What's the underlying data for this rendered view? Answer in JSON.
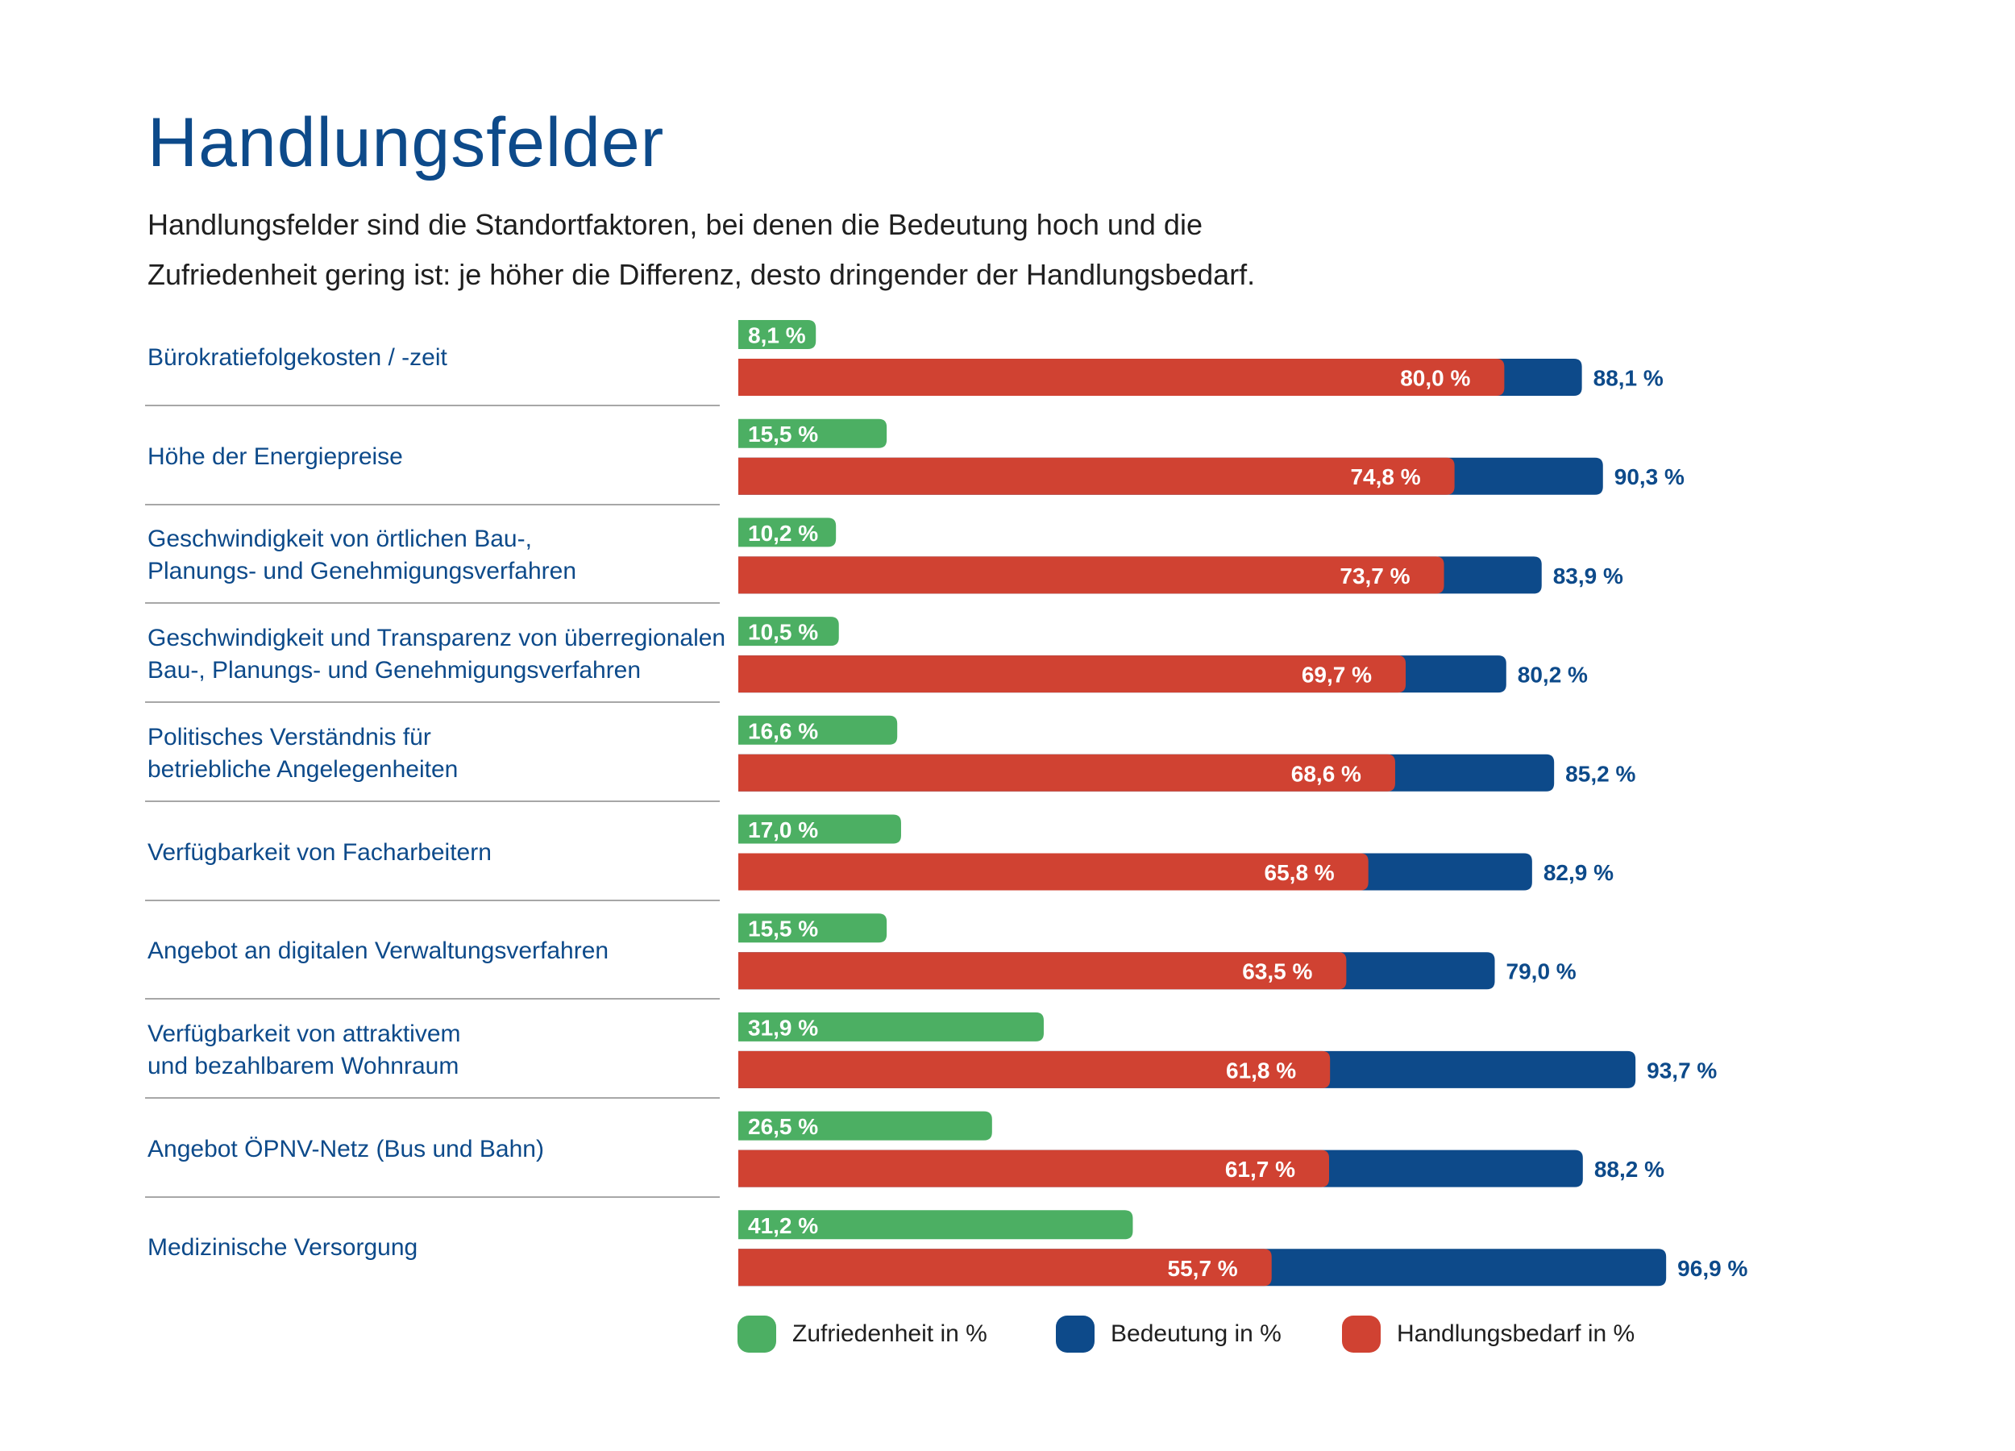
{
  "header": {
    "title": "Handlungsfelder",
    "subtitle_line1": "Handlungsfelder sind die Standortfaktoren, bei denen die Bedeutung hoch und die",
    "subtitle_line2": "Zufriedenheit gering ist: je höher die Differenz, desto dringender der Handlungsbedarf."
  },
  "colors": {
    "zufriedenheit": "#4caf63",
    "bedeutung": "#0d4a8a",
    "handlungsbedarf": "#d04232",
    "label_text": "#0d4a8a"
  },
  "legend": {
    "items": [
      {
        "label": "Zufriedenheit in %",
        "color": "#4caf63"
      },
      {
        "label": "Bedeutung in %",
        "color": "#0d4a8a"
      },
      {
        "label": "Handlungsbedarf in %",
        "color": "#d04232"
      }
    ]
  },
  "chart_data": {
    "type": "bar",
    "orientation": "horizontal",
    "title": "Handlungsfelder",
    "xlim": [
      0,
      100
    ],
    "categories": [
      [
        "Bürokratiefolgekosten / -zeit"
      ],
      [
        "Höhe der Energiepreise"
      ],
      [
        "Geschwindigkeit von örtlichen Bau-,",
        "Planungs- und Genehmigungsverfahren"
      ],
      [
        "Geschwindigkeit und Transparenz von überregionalen",
        "Bau-, Planungs- und Genehmigungsverfahren"
      ],
      [
        "Politisches Verständnis für",
        "betriebliche Angelegenheiten"
      ],
      [
        "Verfügbarkeit von Facharbeitern"
      ],
      [
        "Angebot an digitalen Verwaltungsverfahren"
      ],
      [
        "Verfügbarkeit von attraktivem",
        "und bezahlbarem Wohnraum"
      ],
      [
        "Angebot ÖPNV-Netz (Bus und Bahn)"
      ],
      [
        "Medizinische Versorgung"
      ]
    ],
    "series": [
      {
        "name": "Zufriedenheit in %",
        "values": [
          8.1,
          15.5,
          10.2,
          10.5,
          16.6,
          17.0,
          15.5,
          31.9,
          26.5,
          41.2
        ],
        "labels": [
          "8,1 %",
          "15,5 %",
          "10,2 %",
          "10,5 %",
          "16,6 %",
          "17,0 %",
          "15,5 %",
          "31,9 %",
          "26,5 %",
          "41,2 %"
        ]
      },
      {
        "name": "Bedeutung in %",
        "values": [
          88.1,
          90.3,
          83.9,
          80.2,
          85.2,
          82.9,
          79.0,
          93.7,
          88.2,
          96.9
        ],
        "labels": [
          "88,1 %",
          "90,3 %",
          "83,9 %",
          "80,2 %",
          "85,2 %",
          "82,9 %",
          "79,0 %",
          "93,7 %",
          "88,2 %",
          "96,9 %"
        ]
      },
      {
        "name": "Handlungsbedarf in %",
        "values": [
          80.0,
          74.8,
          73.7,
          69.7,
          68.6,
          65.8,
          63.5,
          61.8,
          61.7,
          55.7
        ],
        "labels": [
          "80,0 %",
          "74,8 %",
          "73,7 %",
          "69,7 %",
          "68,6 %",
          "65,8 %",
          "63,5 %",
          "61,8 %",
          "61,7 %",
          "55,7 %"
        ]
      }
    ]
  }
}
